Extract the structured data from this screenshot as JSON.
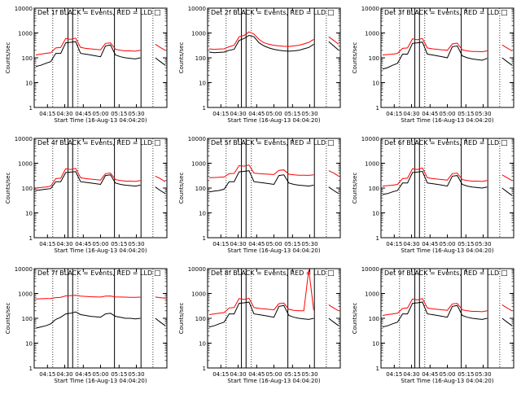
{
  "figure": {
    "xlabel": "Start Time (16-Aug-13 04:04:20)",
    "ylabel": "Counts/sec",
    "legend_marker": "□"
  },
  "chart_data": [
    {
      "type": "line",
      "title": "Det 1f BLACK = Events, RED = LLD",
      "xlabel": "Start Time (16-Aug-13 04:04:20)",
      "ylabel": "Counts/sec",
      "yscale": "log",
      "ylim": [
        1,
        10000
      ],
      "x_ticks": [
        "04:15",
        "04:30",
        "04:45",
        "05:00",
        "05:15",
        "05:30"
      ],
      "y_ticks": [
        "1",
        "10",
        "100",
        "1000",
        "10000"
      ],
      "series": [
        {
          "name": "Events",
          "color": "#000000",
          "values": [
            45,
            50,
            60,
            70,
            150,
            150,
            400,
            420,
            450,
            150,
            140,
            130,
            120,
            110,
            300,
            330,
            130,
            110,
            100,
            95,
            90,
            100,
            null,
            null,
            100,
            70,
            50
          ]
        },
        {
          "name": "LLD",
          "color": "#ff0000",
          "values": [
            130,
            140,
            150,
            160,
            250,
            260,
            600,
            550,
            620,
            260,
            240,
            230,
            220,
            210,
            380,
            400,
            220,
            200,
            190,
            190,
            185,
            200,
            null,
            null,
            350,
            260,
            200
          ]
        }
      ]
    },
    {
      "type": "line",
      "title": "Det 2f BLACK = Events, RED = LLD",
      "xlabel": "Start Time (16-Aug-13 04:04:20)",
      "ylabel": "Counts/sec",
      "yscale": "log",
      "ylim": [
        1,
        10000
      ],
      "x_ticks": [
        "04:15",
        "04:30",
        "04:45",
        "05:00",
        "05:15",
        "05:30"
      ],
      "y_ticks": [
        "1",
        "10",
        "100",
        "1000",
        "10000"
      ],
      "series": [
        {
          "name": "Events",
          "color": "#000000",
          "values": [
            170,
            160,
            165,
            170,
            200,
            220,
            500,
            600,
            800,
            700,
            400,
            300,
            250,
            220,
            200,
            190,
            185,
            190,
            200,
            230,
            260,
            350,
            null,
            null,
            450,
            300,
            200
          ]
        },
        {
          "name": "LLD",
          "color": "#ff0000",
          "values": [
            230,
            220,
            225,
            230,
            280,
            320,
            700,
            800,
            1100,
            900,
            550,
            400,
            350,
            320,
            300,
            290,
            285,
            300,
            320,
            360,
            420,
            550,
            null,
            null,
            700,
            500,
            350
          ]
        }
      ]
    },
    {
      "type": "line",
      "title": "Det 3f BLACK = Events, RED = LLD",
      "xlabel": "Start Time (16-Aug-13 04:04:20)",
      "ylabel": "Counts/sec",
      "yscale": "log",
      "ylim": [
        1,
        10000
      ],
      "x_ticks": [
        "04:15",
        "04:30",
        "04:45",
        "05:00",
        "05:15",
        "05:30"
      ],
      "y_ticks": [
        "1",
        "10",
        "100",
        "1000",
        "10000"
      ],
      "series": [
        {
          "name": "Events",
          "color": "#000000",
          "values": [
            35,
            40,
            50,
            60,
            140,
            140,
            380,
            400,
            430,
            140,
            130,
            120,
            110,
            100,
            280,
            300,
            120,
            100,
            90,
            85,
            80,
            95,
            null,
            null,
            100,
            70,
            50
          ]
        },
        {
          "name": "LLD",
          "color": "#ff0000",
          "values": [
            130,
            135,
            140,
            150,
            240,
            250,
            580,
            530,
            600,
            250,
            230,
            220,
            210,
            200,
            360,
            390,
            210,
            190,
            180,
            180,
            175,
            190,
            null,
            null,
            330,
            250,
            190
          ]
        }
      ]
    },
    {
      "type": "line",
      "title": "Det 4f BLACK = Events, RED = LLD",
      "xlabel": "Start Time (16-Aug-13 04:04:20)",
      "ylabel": "Counts/sec",
      "yscale": "log",
      "ylim": [
        1,
        10000
      ],
      "x_ticks": [
        "04:15",
        "04:30",
        "04:45",
        "05:00",
        "05:15",
        "05:30"
      ],
      "y_ticks": [
        "1",
        "10",
        "100",
        "1000",
        "10000"
      ],
      "series": [
        {
          "name": "Events",
          "color": "#000000",
          "values": [
            80,
            85,
            90,
            95,
            180,
            180,
            420,
            440,
            460,
            180,
            170,
            160,
            150,
            140,
            320,
            340,
            160,
            140,
            130,
            125,
            120,
            130,
            null,
            null,
            110,
            80,
            60
          ]
        },
        {
          "name": "LLD",
          "color": "#ff0000",
          "values": [
            100,
            105,
            110,
            120,
            240,
            250,
            600,
            560,
            620,
            260,
            240,
            230,
            220,
            210,
            380,
            400,
            220,
            200,
            190,
            190,
            185,
            200,
            null,
            null,
            300,
            240,
            180
          ]
        }
      ]
    },
    {
      "type": "line",
      "title": "Det 5f BLACK = Events, RED = LLD",
      "xlabel": "Start Time (16-Aug-13 04:04:20)",
      "ylabel": "Counts/sec",
      "yscale": "log",
      "ylim": [
        1,
        10000
      ],
      "x_ticks": [
        "04:15",
        "04:30",
        "04:45",
        "05:00",
        "05:15",
        "05:30"
      ],
      "y_ticks": [
        "1",
        "10",
        "100",
        "1000",
        "10000"
      ],
      "series": [
        {
          "name": "Events",
          "color": "#000000",
          "values": [
            70,
            75,
            80,
            90,
            180,
            180,
            450,
            470,
            500,
            180,
            170,
            160,
            150,
            140,
            320,
            340,
            160,
            140,
            130,
            125,
            120,
            130,
            null,
            null,
            110,
            80,
            60
          ]
        },
        {
          "name": "LLD",
          "color": "#ff0000",
          "values": [
            260,
            265,
            270,
            280,
            380,
            390,
            800,
            760,
            850,
            400,
            380,
            370,
            360,
            350,
            520,
            540,
            360,
            340,
            330,
            330,
            325,
            340,
            null,
            null,
            500,
            400,
            300
          ]
        }
      ]
    },
    {
      "type": "line",
      "title": "Det 6f BLACK = Events, RED = LLD",
      "xlabel": "Start Time (16-Aug-13 04:04:20)",
      "ylabel": "Counts/sec",
      "yscale": "log",
      "ylim": [
        1,
        10000
      ],
      "x_ticks": [
        "04:15",
        "04:30",
        "04:45",
        "05:00",
        "05:15",
        "05:30"
      ],
      "y_ticks": [
        "1",
        "10",
        "100",
        "1000",
        "10000"
      ],
      "series": [
        {
          "name": "Events",
          "color": "#000000",
          "values": [
            55,
            60,
            70,
            80,
            160,
            160,
            420,
            440,
            470,
            160,
            150,
            140,
            130,
            120,
            300,
            320,
            140,
            120,
            110,
            105,
            100,
            110,
            null,
            null,
            100,
            70,
            50
          ]
        },
        {
          "name": "LLD",
          "color": "#ff0000",
          "values": [
            120,
            125,
            130,
            140,
            240,
            250,
            600,
            560,
            640,
            260,
            240,
            230,
            220,
            210,
            380,
            400,
            220,
            200,
            190,
            190,
            185,
            200,
            null,
            null,
            340,
            260,
            200
          ]
        }
      ]
    },
    {
      "type": "line",
      "title": "Det 7f BLACK = Events, RED = LLD",
      "xlabel": "Start Time (16-Aug-13 04:04:20)",
      "ylabel": "Counts/sec",
      "yscale": "log",
      "ylim": [
        1,
        10000
      ],
      "x_ticks": [
        "04:15",
        "04:30",
        "04:45",
        "05:00",
        "05:15",
        "05:30"
      ],
      "y_ticks": [
        "1",
        "10",
        "100",
        "1000",
        "10000"
      ],
      "series": [
        {
          "name": "Events",
          "color": "#000000",
          "values": [
            40,
            45,
            50,
            60,
            90,
            110,
            150,
            160,
            180,
            140,
            130,
            120,
            115,
            110,
            150,
            160,
            120,
            110,
            100,
            100,
            95,
            100,
            null,
            null,
            100,
            70,
            50
          ]
        },
        {
          "name": "LLD",
          "color": "#ff0000",
          "values": [
            600,
            610,
            620,
            630,
            680,
            700,
            800,
            820,
            850,
            780,
            760,
            740,
            730,
            720,
            780,
            790,
            730,
            720,
            710,
            700,
            700,
            710,
            null,
            null,
            720,
            680,
            650
          ]
        }
      ]
    },
    {
      "type": "line",
      "title": "Det 8f BLACK = Events, RED = LLD",
      "xlabel": "Start Time (16-Aug-13 04:04:20)",
      "ylabel": "Counts/sec",
      "yscale": "log",
      "ylim": [
        1,
        10000
      ],
      "x_ticks": [
        "04:15",
        "04:30",
        "04:45",
        "05:00",
        "05:15",
        "05:30"
      ],
      "y_ticks": [
        "1",
        "10",
        "100",
        "1000",
        "10000"
      ],
      "series": [
        {
          "name": "Events",
          "color": "#000000",
          "values": [
            45,
            50,
            60,
            70,
            150,
            150,
            400,
            420,
            450,
            150,
            140,
            130,
            120,
            110,
            300,
            330,
            130,
            110,
            100,
            95,
            90,
            100,
            null,
            null,
            100,
            70,
            50
          ]
        },
        {
          "name": "LLD",
          "color": "#ff0000",
          "values": [
            140,
            150,
            160,
            170,
            260,
            270,
            620,
            570,
            640,
            270,
            250,
            240,
            230,
            220,
            390,
            410,
            230,
            210,
            200,
            200,
            9000,
            210,
            null,
            null,
            350,
            260,
            200
          ]
        }
      ]
    },
    {
      "type": "line",
      "title": "Det 9f BLACK = Events, RED = LLD",
      "xlabel": "Start Time (16-Aug-13 04:04:20)",
      "ylabel": "Counts/sec",
      "yscale": "log",
      "ylim": [
        1,
        10000
      ],
      "x_ticks": [
        "04:15",
        "04:30",
        "04:45",
        "05:00",
        "05:15",
        "05:30"
      ],
      "y_ticks": [
        "1",
        "10",
        "100",
        "1000",
        "10000"
      ],
      "series": [
        {
          "name": "Events",
          "color": "#000000",
          "values": [
            45,
            50,
            60,
            70,
            150,
            150,
            400,
            420,
            450,
            150,
            140,
            130,
            120,
            110,
            300,
            330,
            130,
            110,
            100,
            95,
            90,
            100,
            null,
            null,
            100,
            70,
            50
          ]
        },
        {
          "name": "LLD",
          "color": "#ff0000",
          "values": [
            130,
            140,
            150,
            160,
            250,
            260,
            600,
            550,
            620,
            260,
            240,
            230,
            220,
            210,
            380,
            400,
            220,
            200,
            190,
            190,
            185,
            200,
            null,
            null,
            350,
            260,
            200
          ]
        }
      ]
    }
  ]
}
